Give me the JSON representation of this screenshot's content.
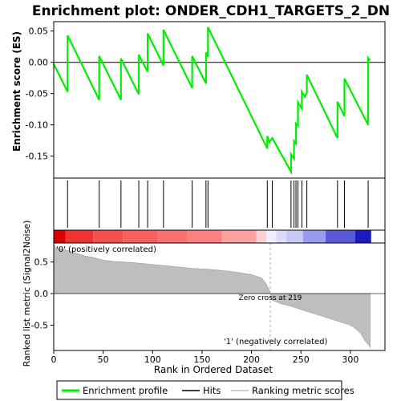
{
  "chart_data": {
    "type": "line",
    "title": "Enrichment plot: ONDER_CDH1_TARGETS_2_DN",
    "xlabel": "Rank in Ordered Dataset",
    "colors": {
      "es_line": "#00ee00",
      "hit": "#000000",
      "metric_fill": "#bebebe",
      "pos_label": "#ff0000",
      "neg_label": "#0000cc",
      "zero_line": "#aaaaaa"
    },
    "es_panel": {
      "ylabel": "Enrichment score (ES)",
      "ylim": [
        -0.185,
        0.065
      ],
      "yticks": [
        -0.15,
        -0.1,
        -0.05,
        0.0,
        0.05
      ],
      "ytick_labels": [
        "-0.15",
        "-0.10",
        "-0.05",
        "0.00",
        "0.05"
      ],
      "points": [
        [
          0,
          -0.003
        ],
        [
          14,
          -0.047
        ],
        [
          14,
          0.043
        ],
        [
          46,
          -0.06
        ],
        [
          46,
          0.01
        ],
        [
          68,
          -0.06
        ],
        [
          68,
          0.006
        ],
        [
          86,
          -0.051
        ],
        [
          86,
          0.012
        ],
        [
          95,
          -0.015
        ],
        [
          95,
          0.046
        ],
        [
          111,
          -0.005
        ],
        [
          111,
          0.052
        ],
        [
          140,
          -0.041
        ],
        [
          140,
          0.01
        ],
        [
          154,
          -0.034
        ],
        [
          154,
          0.016
        ],
        [
          156,
          0.009
        ],
        [
          156,
          0.056
        ],
        [
          216,
          -0.138
        ],
        [
          216,
          -0.118
        ],
        [
          218,
          -0.128
        ],
        [
          221,
          -0.121
        ],
        [
          240,
          -0.175
        ],
        [
          240,
          -0.147
        ],
        [
          243,
          -0.154
        ],
        [
          243,
          -0.126
        ],
        [
          245,
          -0.13
        ],
        [
          245,
          -0.098
        ],
        [
          247,
          -0.101
        ],
        [
          247,
          -0.064
        ],
        [
          251,
          -0.074
        ],
        [
          251,
          -0.047
        ],
        [
          254,
          -0.055
        ],
        [
          256,
          -0.048
        ],
        [
          256,
          -0.02
        ],
        [
          287,
          -0.121
        ],
        [
          287,
          -0.063
        ],
        [
          294,
          -0.086
        ],
        [
          294,
          -0.026
        ],
        [
          318,
          -0.1
        ],
        [
          318,
          0.007
        ],
        [
          320,
          0.003
        ]
      ]
    },
    "hits": [
      14,
      46,
      68,
      86,
      95,
      111,
      140,
      154,
      156,
      216,
      221,
      240,
      243,
      245,
      247,
      251,
      256,
      287,
      294,
      318
    ],
    "metric_panel": {
      "ylabel": "Ranked list metric (Signal2Noise)",
      "ylim": [
        -0.9,
        0.8
      ],
      "yticks": [
        -0.5,
        0.0,
        0.5
      ],
      "ytick_labels": [
        "-0.5",
        "0.0",
        "0.5"
      ],
      "n_genes": 321,
      "points": [
        [
          0,
          0.78
        ],
        [
          2,
          0.72
        ],
        [
          10,
          0.7
        ],
        [
          20,
          0.65
        ],
        [
          30,
          0.6
        ],
        [
          40,
          0.57
        ],
        [
          50,
          0.53
        ],
        [
          60,
          0.51
        ],
        [
          80,
          0.49
        ],
        [
          100,
          0.46
        ],
        [
          120,
          0.43
        ],
        [
          140,
          0.4
        ],
        [
          160,
          0.38
        ],
        [
          180,
          0.35
        ],
        [
          200,
          0.3
        ],
        [
          210,
          0.25
        ],
        [
          215,
          0.15
        ],
        [
          218,
          0.05
        ],
        [
          219,
          0.0
        ],
        [
          220,
          -0.1
        ],
        [
          230,
          -0.16
        ],
        [
          240,
          -0.2
        ],
        [
          250,
          -0.25
        ],
        [
          260,
          -0.3
        ],
        [
          270,
          -0.35
        ],
        [
          280,
          -0.4
        ],
        [
          290,
          -0.45
        ],
        [
          300,
          -0.5
        ],
        [
          305,
          -0.55
        ],
        [
          310,
          -0.62
        ],
        [
          315,
          -0.75
        ],
        [
          319,
          -0.82
        ],
        [
          320,
          -0.85
        ]
      ],
      "pos_label": "'0' (positively correlated)",
      "neg_label": "'1' (negatively correlated)",
      "zero_cross_label": "Zero cross at 219",
      "zero_cross": 219
    },
    "xlim": [
      0,
      335
    ],
    "xticks": [
      0,
      50,
      100,
      150,
      200,
      250,
      300
    ],
    "xtick_labels": [
      "0",
      "50",
      "100",
      "150",
      "200",
      "250",
      "300"
    ],
    "color_bar_segments": [
      [
        0,
        12,
        "#dd0000"
      ],
      [
        12,
        40,
        "#ee3333"
      ],
      [
        40,
        70,
        "#f45050"
      ],
      [
        70,
        105,
        "#f86060"
      ],
      [
        105,
        135,
        "#fb7070"
      ],
      [
        135,
        170,
        "#fd8080"
      ],
      [
        170,
        205,
        "#fda0a0"
      ],
      [
        205,
        215,
        "#fbd0d0"
      ],
      [
        215,
        225,
        "#eeeeff"
      ],
      [
        225,
        235,
        "#dcdcf8"
      ],
      [
        235,
        252,
        "#c8c8f4"
      ],
      [
        252,
        275,
        "#9a9aee"
      ],
      [
        275,
        305,
        "#5a5ad8"
      ],
      [
        305,
        321,
        "#1a1ac0"
      ]
    ],
    "legend": {
      "placement": "bottom",
      "entries": [
        "Enrichment profile",
        "Hits",
        "Ranking metric scores"
      ]
    }
  }
}
